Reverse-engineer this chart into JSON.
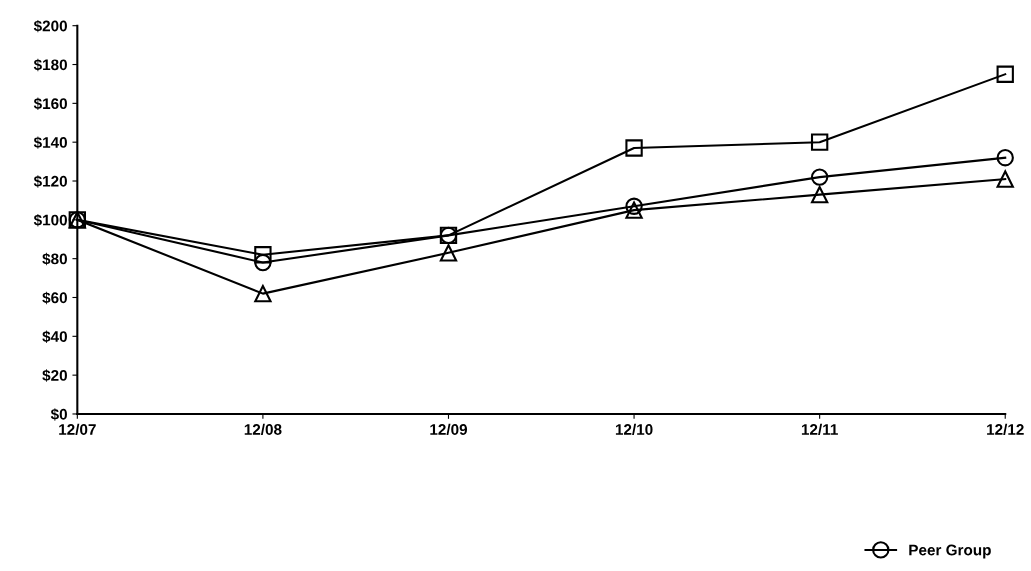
{
  "chart_data": {
    "type": "line",
    "categories": [
      "12/07",
      "12/08",
      "12/09",
      "12/10",
      "12/11",
      "12/12"
    ],
    "series": [
      {
        "color": "#000000",
        "marker": "square",
        "values": [
          100,
          82,
          92,
          137,
          140,
          175
        ]
      },
      {
        "color": "#000000",
        "marker": "triangle",
        "values": [
          100,
          62,
          83,
          105,
          113,
          121
        ]
      },
      {
        "name": "Peer Group",
        "color": "#000000",
        "marker": "circle",
        "values": [
          100,
          78,
          92,
          107,
          122,
          132
        ]
      }
    ],
    "ylim": [
      0,
      200
    ],
    "yticks": [
      {
        "value": 0,
        "label": "$0"
      },
      {
        "value": 20,
        "label": "$20"
      },
      {
        "value": 40,
        "label": "$40"
      },
      {
        "value": 60,
        "label": "$60"
      },
      {
        "value": 80,
        "label": "$80"
      },
      {
        "value": 100,
        "label": "$100"
      },
      {
        "value": 120,
        "label": "$120"
      },
      {
        "value": 140,
        "label": "$140"
      },
      {
        "value": 160,
        "label": "$160"
      },
      {
        "value": 180,
        "label": "$180"
      },
      {
        "value": 200,
        "label": "$200"
      }
    ],
    "grid": false,
    "legend": "bottom",
    "line_style": "solid"
  }
}
